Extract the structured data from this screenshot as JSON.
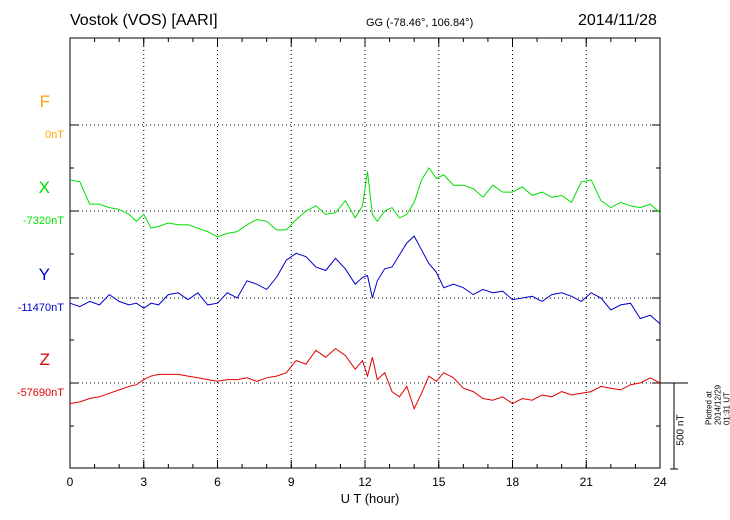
{
  "header": {
    "station": "Vostok (VOS)  [AARI]",
    "coords": "GG (-78.46°, 106.84°)",
    "date": "2014/11/28"
  },
  "chart_data": {
    "type": "line",
    "xlabel": "U T (hour)",
    "xlim": [
      0,
      24
    ],
    "xticks": [
      "0",
      "3",
      "6",
      "9",
      "12",
      "15",
      "18",
      "21",
      "24"
    ],
    "scale_label": "500 nT",
    "plotted_note": "Plotted at 2014/12/29 01:31  UT",
    "series": [
      {
        "name": "F",
        "baseline_label": "0nT",
        "color": "#ffa500",
        "t": [],
        "v": []
      },
      {
        "name": "X",
        "baseline_label": "-7320nT",
        "color": "#00e000",
        "t": [
          0,
          0.4,
          0.8,
          1.2,
          1.6,
          2.0,
          2.4,
          2.7,
          3.0,
          3.3,
          3.6,
          4.0,
          4.4,
          4.8,
          5.2,
          5.6,
          6.0,
          6.4,
          6.8,
          7.2,
          7.6,
          8.0,
          8.4,
          8.8,
          9.2,
          9.6,
          10.0,
          10.4,
          10.8,
          11.2,
          11.6,
          11.9,
          12.1,
          12.3,
          12.5,
          12.8,
          13.1,
          13.4,
          13.7,
          14.0,
          14.3,
          14.6,
          14.9,
          15.2,
          15.6,
          16.0,
          16.4,
          16.8,
          17.2,
          17.6,
          18.0,
          18.4,
          18.8,
          19.2,
          19.6,
          20.0,
          20.4,
          20.8,
          21.2,
          21.6,
          22.0,
          22.4,
          22.8,
          23.2,
          23.6,
          24.0
        ],
        "v": [
          180,
          170,
          40,
          40,
          20,
          10,
          -20,
          -60,
          -20,
          -100,
          -90,
          -70,
          -80,
          -80,
          -100,
          -120,
          -150,
          -130,
          -120,
          -80,
          -50,
          -60,
          -110,
          -110,
          -50,
          0,
          30,
          -20,
          -10,
          60,
          -40,
          30,
          230,
          -20,
          -60,
          0,
          20,
          -40,
          -20,
          50,
          180,
          250,
          190,
          210,
          150,
          150,
          130,
          80,
          150,
          110,
          110,
          140,
          90,
          110,
          80,
          90,
          50,
          170,
          180,
          60,
          20,
          50,
          30,
          20,
          40,
          -10
        ]
      },
      {
        "name": "Y",
        "baseline_label": "-11470nT",
        "color": "#0000d0",
        "t": [
          0,
          0.4,
          0.8,
          1.2,
          1.6,
          2.0,
          2.4,
          2.7,
          3.0,
          3.3,
          3.6,
          4.0,
          4.4,
          4.8,
          5.2,
          5.6,
          6.0,
          6.4,
          6.8,
          7.2,
          7.6,
          8.0,
          8.4,
          8.8,
          9.2,
          9.6,
          10.0,
          10.4,
          10.8,
          11.2,
          11.6,
          11.9,
          12.1,
          12.3,
          12.5,
          12.8,
          13.1,
          13.4,
          13.7,
          14.0,
          14.3,
          14.6,
          14.9,
          15.2,
          15.6,
          16.0,
          16.4,
          16.8,
          17.2,
          17.6,
          18.0,
          18.4,
          18.8,
          19.2,
          19.6,
          20.0,
          20.4,
          20.8,
          21.2,
          21.6,
          22.0,
          22.4,
          22.8,
          23.2,
          23.6,
          24.0
        ],
        "v": [
          -30,
          -50,
          -20,
          -40,
          20,
          -20,
          -40,
          -30,
          -60,
          -30,
          -40,
          20,
          30,
          -10,
          30,
          -40,
          -30,
          30,
          0,
          100,
          80,
          50,
          120,
          220,
          260,
          240,
          180,
          160,
          230,
          170,
          80,
          120,
          130,
          0,
          100,
          170,
          180,
          250,
          320,
          360,
          280,
          200,
          150,
          60,
          80,
          60,
          20,
          50,
          30,
          40,
          -10,
          0,
          10,
          -20,
          20,
          30,
          10,
          -20,
          30,
          0,
          -70,
          -40,
          -30,
          -120,
          -100,
          -150
        ]
      },
      {
        "name": "Z",
        "baseline_label": "-57690nT",
        "color": "#e00000",
        "t": [
          0,
          0.4,
          0.8,
          1.2,
          1.6,
          2.0,
          2.4,
          2.7,
          3.0,
          3.3,
          3.6,
          4.0,
          4.4,
          4.8,
          5.2,
          5.6,
          6.0,
          6.4,
          6.8,
          7.2,
          7.6,
          8.0,
          8.4,
          8.8,
          9.2,
          9.6,
          10.0,
          10.4,
          10.8,
          11.2,
          11.6,
          11.9,
          12.1,
          12.3,
          12.5,
          12.8,
          13.1,
          13.4,
          13.7,
          14.0,
          14.3,
          14.6,
          14.9,
          15.2,
          15.6,
          16.0,
          16.4,
          16.8,
          17.2,
          17.6,
          18.0,
          18.4,
          18.8,
          19.2,
          19.6,
          20.0,
          20.4,
          20.8,
          21.2,
          21.6,
          22.0,
          22.4,
          22.8,
          23.2,
          23.6,
          24.0
        ],
        "v": [
          -120,
          -110,
          -90,
          -80,
          -60,
          -40,
          -20,
          -10,
          20,
          40,
          50,
          50,
          50,
          40,
          30,
          20,
          10,
          20,
          20,
          30,
          10,
          30,
          40,
          60,
          130,
          110,
          190,
          150,
          200,
          160,
          80,
          130,
          40,
          150,
          20,
          60,
          -50,
          -80,
          -20,
          -150,
          -60,
          40,
          10,
          60,
          30,
          -30,
          -50,
          -90,
          -100,
          -80,
          -120,
          -90,
          -100,
          -70,
          -80,
          -50,
          -70,
          -60,
          -50,
          -20,
          -30,
          -40,
          -10,
          0,
          30,
          0
        ]
      }
    ]
  }
}
